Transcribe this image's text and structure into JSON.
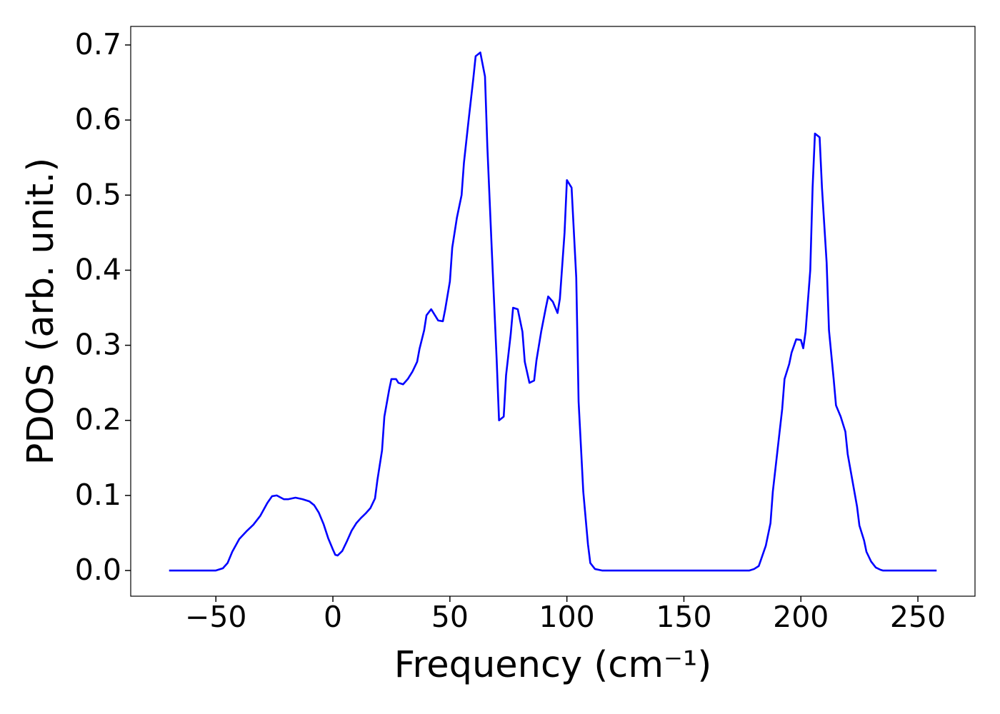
{
  "chart_data": {
    "type": "line",
    "x_label": "Frequency (cm⁻¹)",
    "y_label": "PDOS (arb. unit.)",
    "color": "#0000ff",
    "x": [
      -70,
      -50,
      -47,
      -45,
      -43,
      -40,
      -37,
      -34,
      -31,
      -28,
      -26,
      -24,
      -21,
      -19,
      -16,
      -13,
      -10,
      -8,
      -6,
      -4,
      -2,
      0,
      1,
      2,
      4,
      6,
      8,
      10,
      12,
      14,
      16,
      18,
      19,
      21,
      22,
      24,
      25,
      27,
      28,
      30,
      32,
      34,
      36,
      37,
      39,
      40,
      42,
      43,
      45,
      47,
      48,
      50,
      51,
      53,
      55,
      56,
      58,
      60,
      61,
      63,
      65,
      66,
      68,
      70,
      71,
      73,
      74,
      76,
      77,
      79,
      81,
      82,
      84,
      86,
      87,
      89,
      91,
      92,
      94,
      96,
      97,
      99,
      100,
      102,
      104,
      105,
      107,
      109,
      110,
      112,
      115,
      178,
      180,
      182,
      183,
      185,
      187,
      188,
      190,
      192,
      193,
      195,
      196,
      198,
      200,
      201,
      202,
      204,
      205,
      206,
      208,
      209,
      211,
      212,
      214,
      215,
      217,
      219,
      220,
      222,
      224,
      225,
      227,
      228,
      230,
      232,
      234,
      235,
      258
    ],
    "values": [
      0,
      0,
      0.003,
      0.01,
      0.025,
      0.042,
      0.052,
      0.061,
      0.073,
      0.09,
      0.099,
      0.1,
      0.095,
      0.095,
      0.097,
      0.095,
      0.092,
      0.087,
      0.077,
      0.062,
      0.043,
      0.028,
      0.021,
      0.02,
      0.026,
      0.039,
      0.053,
      0.063,
      0.07,
      0.076,
      0.083,
      0.096,
      0.12,
      0.16,
      0.205,
      0.24,
      0.255,
      0.255,
      0.25,
      0.248,
      0.255,
      0.265,
      0.278,
      0.295,
      0.32,
      0.34,
      0.348,
      0.343,
      0.333,
      0.332,
      0.348,
      0.385,
      0.43,
      0.47,
      0.5,
      0.543,
      0.6,
      0.655,
      0.685,
      0.69,
      0.658,
      0.565,
      0.42,
      0.28,
      0.2,
      0.205,
      0.26,
      0.315,
      0.35,
      0.348,
      0.318,
      0.278,
      0.25,
      0.253,
      0.28,
      0.318,
      0.35,
      0.365,
      0.358,
      0.343,
      0.362,
      0.45,
      0.52,
      0.51,
      0.39,
      0.225,
      0.105,
      0.035,
      0.01,
      0.002,
      0,
      0,
      0.002,
      0.006,
      0.015,
      0.033,
      0.063,
      0.105,
      0.16,
      0.215,
      0.255,
      0.275,
      0.29,
      0.308,
      0.307,
      0.296,
      0.318,
      0.4,
      0.51,
      0.582,
      0.577,
      0.51,
      0.41,
      0.32,
      0.255,
      0.22,
      0.205,
      0.185,
      0.155,
      0.12,
      0.085,
      0.06,
      0.04,
      0.025,
      0.012,
      0.004,
      0.001,
      0,
      0
    ],
    "xlim": [
      -86.4,
      274.4
    ],
    "ylim": [
      -0.0342,
      0.7247
    ],
    "xticks": [
      {
        "value": -50,
        "label": "−50"
      },
      0,
      50,
      100,
      150,
      200,
      250
    ],
    "yticks": [
      {
        "value": 0,
        "label": "0.0"
      },
      0.1,
      0.2,
      0.3,
      0.4,
      0.5,
      0.6,
      0.7
    ],
    "grid": false
  }
}
